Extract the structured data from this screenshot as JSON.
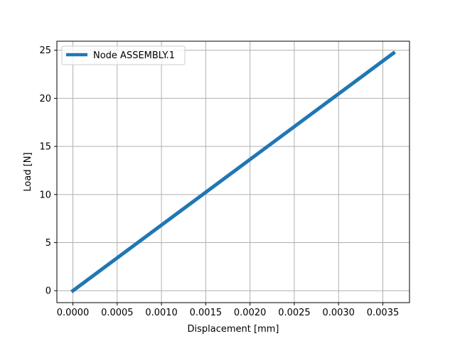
{
  "chart_data": {
    "type": "line",
    "xlabel": "Displacement [mm]",
    "ylabel": "Load [N]",
    "xlim": [
      -0.000181,
      0.003801
    ],
    "ylim": [
      -1.24,
      25.94
    ],
    "xticks": [
      0.0,
      0.0005,
      0.001,
      0.0015,
      0.002,
      0.0025,
      0.003,
      0.0035
    ],
    "xtick_labels": [
      "0.0000",
      "0.0005",
      "0.0010",
      "0.0015",
      "0.0020",
      "0.0025",
      "0.0030",
      "0.0035"
    ],
    "yticks": [
      0,
      5,
      10,
      15,
      20,
      25
    ],
    "ytick_labels": [
      "0",
      "5",
      "10",
      "15",
      "20",
      "25"
    ],
    "grid": true,
    "legend_position": "top-left",
    "series": [
      {
        "name": "Node ASSEMBLY.1",
        "color": "#1f77b4",
        "x": [
          0.0,
          0.00362
        ],
        "y": [
          0.0,
          24.7
        ]
      }
    ]
  }
}
